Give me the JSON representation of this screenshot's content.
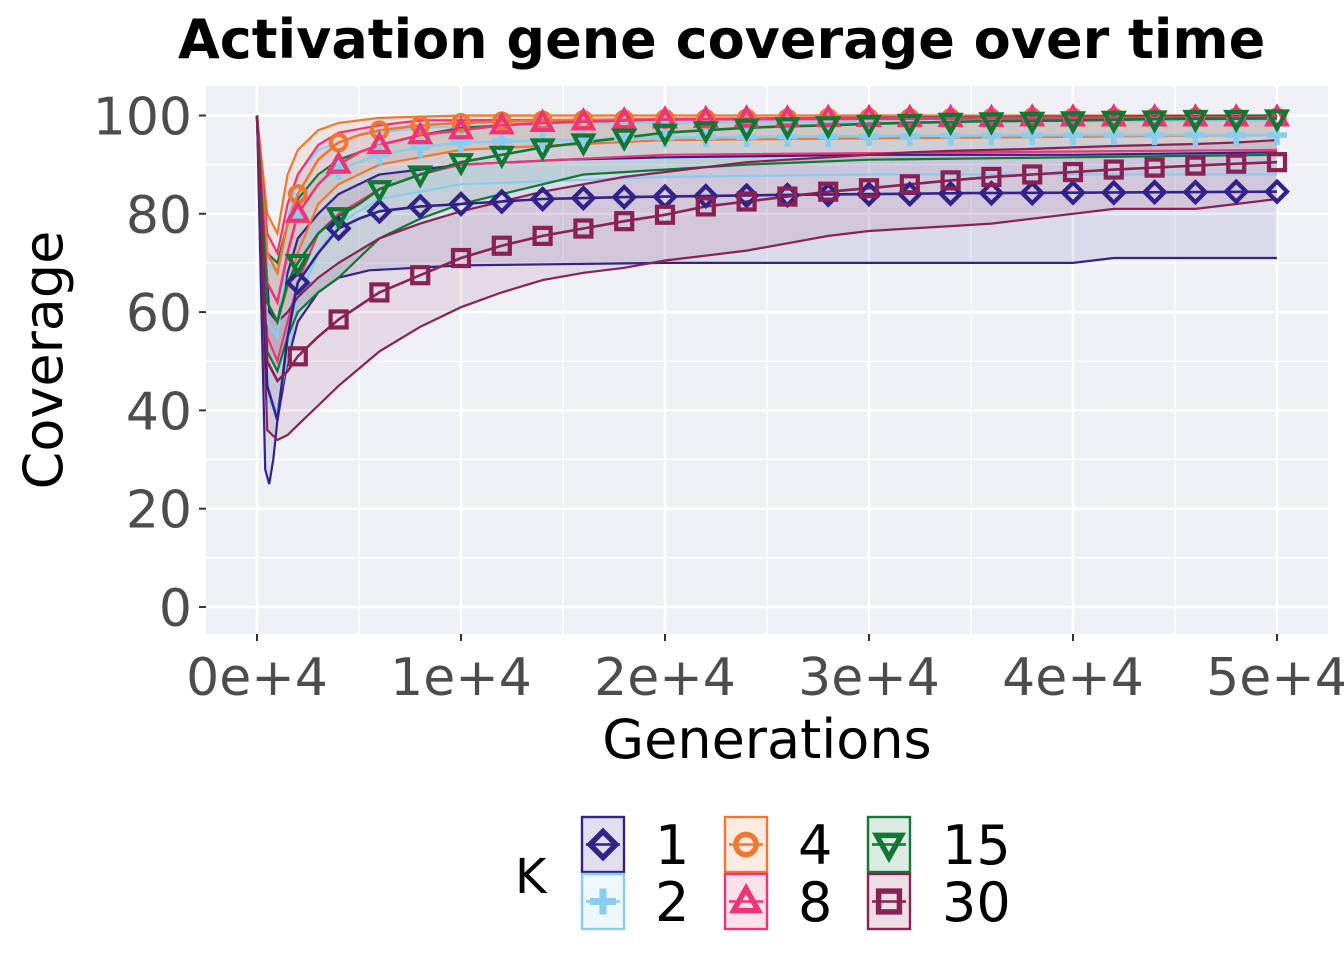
{
  "chart_data": {
    "type": "line",
    "title": "Activation gene coverage over time",
    "xlabel": "Generations",
    "ylabel": "Coverage",
    "xlim": [
      -2500,
      52500
    ],
    "ylim": [
      -5.5,
      106
    ],
    "x_ticks": [
      0,
      10000,
      20000,
      30000,
      40000,
      50000
    ],
    "x_tick_labels": [
      "0e+4",
      "1e+4",
      "2e+4",
      "3e+4",
      "4e+4",
      "5e+4"
    ],
    "y_ticks": [
      0,
      20,
      40,
      60,
      80,
      100
    ],
    "y_tick_labels": [
      "0",
      "20",
      "40",
      "60",
      "80",
      "100"
    ],
    "grid": true,
    "legend": {
      "title": "K",
      "position": "bottom"
    },
    "marker_x": [
      2000,
      4000,
      6000,
      8000,
      10000,
      12000,
      14000,
      16000,
      18000,
      20000,
      22000,
      24000,
      26000,
      28000,
      30000,
      32000,
      34000,
      36000,
      38000,
      40000,
      42000,
      44000,
      46000,
      48000,
      50000
    ],
    "series": [
      {
        "name": "1",
        "color": "#332288",
        "marker": "diamond",
        "median_x": [
          0,
          500,
          1000,
          1500,
          2000,
          3000,
          4000,
          5000,
          6000,
          8000,
          10000,
          12000,
          14000,
          16000,
          18000,
          20000,
          25000,
          30000,
          35000,
          40000,
          45000,
          50000
        ],
        "median_y": [
          100,
          45,
          38,
          55,
          66,
          72,
          77,
          79,
          80.5,
          81.5,
          82,
          82.5,
          83,
          83.2,
          83.4,
          83.5,
          83.8,
          84,
          84.2,
          84.3,
          84.4,
          84.5
        ],
        "lower_x": [
          0,
          400,
          600,
          800,
          1000,
          1500,
          2000,
          3000,
          4000,
          5000,
          5500,
          10000,
          20000,
          30000,
          40000,
          42000,
          50000
        ],
        "lower_y": [
          100,
          28,
          25,
          30,
          38,
          50,
          58,
          64,
          67,
          68,
          68.5,
          69.5,
          70,
          70,
          70,
          71,
          71
        ],
        "upper_x": [
          0,
          600,
          1000,
          1500,
          2000,
          3000,
          4000,
          5000,
          6000,
          8000,
          10000,
          15000,
          20000,
          30000,
          40000,
          50000
        ],
        "upper_y": [
          100,
          60,
          58,
          68,
          75,
          80,
          84,
          86,
          88,
          89,
          90,
          91,
          91.5,
          92,
          92,
          92.5
        ],
        "marker_y": [
          66,
          77,
          80.5,
          81.5,
          82,
          82.5,
          83,
          83.2,
          83.4,
          83.5,
          83.6,
          83.7,
          83.8,
          83.9,
          84,
          84,
          84.1,
          84.2,
          84.2,
          84.3,
          84.3,
          84.4,
          84.4,
          84.5,
          84.5
        ]
      },
      {
        "name": "2",
        "color": "#88CCEE",
        "marker": "plus",
        "median_x": [
          0,
          500,
          1000,
          1500,
          2000,
          3000,
          4000,
          6000,
          8000,
          10000,
          15000,
          20000,
          30000,
          40000,
          50000
        ],
        "median_y": [
          100,
          58,
          55,
          72,
          80,
          86,
          89,
          92,
          93.5,
          94.5,
          95,
          95.5,
          95.8,
          96,
          96
        ],
        "lower_x": [
          0,
          500,
          1000,
          2000,
          3000,
          4000,
          6000,
          10000,
          20000,
          30000,
          50000
        ],
        "lower_y": [
          100,
          42,
          40,
          62,
          72,
          78,
          83,
          86,
          87.5,
          88,
          88
        ],
        "upper_x": [
          0,
          500,
          1000,
          2000,
          3000,
          5000,
          8000,
          15000,
          50000
        ],
        "upper_y": [
          100,
          70,
          68,
          88,
          93,
          96,
          97.5,
          98.5,
          99
        ],
        "marker_y": [
          80,
          89,
          92,
          93.5,
          94.5,
          94.8,
          95,
          95.2,
          95.4,
          95.5,
          95.6,
          95.6,
          95.7,
          95.7,
          95.8,
          95.8,
          95.9,
          95.9,
          96,
          96,
          96,
          96,
          96,
          96,
          96
        ]
      },
      {
        "name": "4",
        "color": "#EE7733",
        "marker": "circle",
        "median_x": [
          0,
          500,
          1000,
          1500,
          2000,
          3000,
          4000,
          5000,
          6000,
          8000,
          10000,
          14000,
          20000,
          30000,
          50000
        ],
        "median_y": [
          100,
          72,
          68,
          78,
          84,
          91,
          94.5,
          96,
          97,
          98,
          98.5,
          99,
          99.3,
          99.5,
          99.6
        ],
        "lower_x": [
          0,
          500,
          1000,
          2000,
          3000,
          4000,
          6000,
          10000,
          20000,
          50000
        ],
        "lower_y": [
          100,
          62,
          58,
          72,
          82,
          86,
          90,
          93,
          95,
          96
        ],
        "upper_x": [
          0,
          500,
          1000,
          1500,
          2000,
          3000,
          4000,
          6000,
          10000,
          50000
        ],
        "upper_y": [
          100,
          80,
          76,
          88,
          93,
          97,
          98.5,
          99.5,
          100,
          100
        ],
        "marker_y": [
          84,
          94.5,
          97,
          98,
          98.5,
          98.8,
          99,
          99.1,
          99.2,
          99.3,
          99.3,
          99.4,
          99.4,
          99.5,
          99.5,
          99.5,
          99.5,
          99.5,
          99.6,
          99.6,
          99.6,
          99.6,
          99.6,
          99.6,
          99.6
        ]
      },
      {
        "name": "8",
        "color": "#EE3377",
        "marker": "triangle",
        "median_x": [
          0,
          500,
          1000,
          1500,
          2000,
          3000,
          4000,
          5000,
          6000,
          8000,
          10000,
          12000,
          14000,
          18000,
          20000,
          30000,
          50000
        ],
        "median_y": [
          100,
          66,
          62,
          72,
          80,
          86,
          90,
          92.5,
          94,
          96,
          97,
          98,
          98.5,
          99,
          99.2,
          99.5,
          99.6
        ],
        "lower_x": [
          0,
          500,
          1000,
          2000,
          3000,
          4000,
          6000,
          8000,
          10000,
          20000,
          50000
        ],
        "lower_y": [
          100,
          55,
          50,
          66,
          76,
          80,
          85,
          88,
          90,
          92,
          93
        ],
        "upper_x": [
          0,
          500,
          1000,
          1500,
          2000,
          3000,
          4000,
          6000,
          8000,
          50000
        ],
        "upper_y": [
          100,
          76,
          72,
          82,
          88,
          94,
          96.5,
          98,
          99,
          99.5
        ],
        "marker_y": [
          80,
          90,
          94,
          96,
          97,
          98,
          98.5,
          98.8,
          99,
          99.2,
          99.3,
          99.4,
          99.4,
          99.5,
          99.5,
          99.5,
          99.5,
          99.5,
          99.6,
          99.6,
          99.6,
          99.6,
          99.6,
          99.6,
          99.6
        ]
      },
      {
        "name": "15",
        "color": "#117733",
        "marker": "triangle-down",
        "median_x": [
          0,
          500,
          1000,
          1500,
          2000,
          3000,
          4000,
          5000,
          6000,
          8000,
          10000,
          12000,
          14000,
          16000,
          18000,
          20000,
          22000,
          24000,
          26000,
          28000,
          30000,
          35000,
          40000,
          45000,
          50000
        ],
        "median_y": [
          100,
          62,
          58,
          66,
          70,
          76,
          79.5,
          82,
          85,
          88,
          90.5,
          92,
          93.5,
          94.5,
          95.5,
          96.5,
          97,
          97.5,
          97.8,
          98,
          98.3,
          98.8,
          99,
          99.3,
          99.4
        ],
        "lower_x": [
          0,
          500,
          1000,
          1500,
          2000,
          3000,
          4000,
          5000,
          6000,
          8000,
          10000,
          12000,
          14000,
          16000,
          20000,
          24000,
          30000,
          40000,
          50000
        ],
        "lower_y": [
          100,
          52,
          48,
          55,
          60,
          64,
          67,
          71,
          75,
          79,
          82,
          84,
          86,
          88,
          89,
          90,
          91,
          91.5,
          92
        ],
        "upper_x": [
          0,
          500,
          1000,
          1500,
          2000,
          3000,
          4000,
          6000,
          8000,
          10000,
          14000,
          20000,
          30000,
          50000
        ],
        "upper_y": [
          100,
          72,
          70,
          78,
          83,
          88,
          91,
          94,
          96,
          97.5,
          98.5,
          99.2,
          99.6,
          100
        ],
        "marker_y": [
          70,
          79.5,
          85,
          88,
          90.5,
          92,
          93.5,
          94.5,
          95.5,
          96.5,
          97,
          97.5,
          97.8,
          98,
          98.3,
          98.5,
          98.7,
          98.8,
          98.9,
          99,
          99.1,
          99.2,
          99.3,
          99.3,
          99.4
        ]
      },
      {
        "name": "30",
        "color": "#882255",
        "marker": "square",
        "median_x": [
          0,
          500,
          1000,
          1500,
          2000,
          3000,
          4000,
          6000,
          8000,
          10000,
          12000,
          14000,
          16000,
          18000,
          20000,
          22000,
          24000,
          26000,
          28000,
          30000,
          32000,
          34000,
          36000,
          38000,
          40000,
          42000,
          44000,
          46000,
          48000,
          50000
        ],
        "median_y": [
          100,
          50,
          46,
          48,
          51,
          55,
          58.5,
          64,
          67.5,
          71,
          73.5,
          75.5,
          77,
          78.5,
          79.8,
          81.5,
          82.5,
          83.5,
          84.5,
          85.2,
          86,
          86.8,
          87.5,
          88,
          88.5,
          89,
          89.4,
          89.8,
          90.2,
          90.5
        ],
        "lower_x": [
          0,
          500,
          1000,
          1500,
          2000,
          3000,
          4000,
          6000,
          8000,
          10000,
          12000,
          14000,
          16000,
          18000,
          20000,
          22000,
          24000,
          26000,
          28000,
          30000,
          32000,
          34000,
          36000,
          38000,
          40000,
          42000,
          44000,
          46000,
          48000,
          50000
        ],
        "lower_y": [
          100,
          36,
          34,
          35,
          37,
          41,
          45,
          52,
          57,
          61,
          64,
          66.5,
          68,
          69,
          70.5,
          71.5,
          72.5,
          74,
          75.5,
          76.5,
          77,
          77.5,
          78,
          79,
          80,
          81,
          81,
          81,
          82,
          83
        ],
        "upper_x": [
          0,
          500,
          1000,
          1500,
          2000,
          3000,
          4000,
          6000,
          8000,
          10000,
          12000,
          14000,
          16000,
          18000,
          20000,
          22000,
          24000,
          26000,
          28000,
          30000,
          32000,
          34000,
          36000,
          38000,
          40000,
          42000,
          44000,
          46000,
          48000,
          50000
        ],
        "upper_y": [
          100,
          62,
          58,
          60,
          63,
          67,
          70,
          75,
          78,
          80.5,
          82.5,
          84.5,
          86,
          87.5,
          88.5,
          89.5,
          90.5,
          91,
          91.5,
          92,
          92.5,
          92.8,
          93,
          93.2,
          93.5,
          93.8,
          94,
          94.2,
          94.5,
          95
        ]
      }
    ]
  }
}
